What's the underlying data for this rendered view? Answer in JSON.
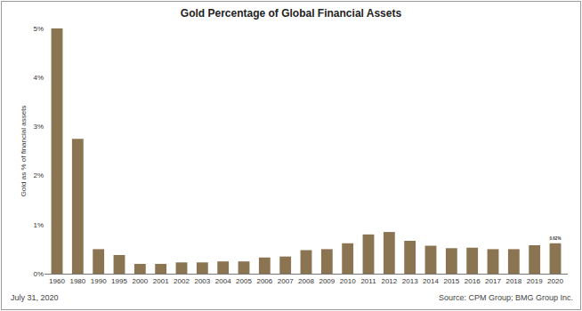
{
  "chart_data": {
    "type": "bar",
    "title": "Gold Percentage of Global Financial Assets",
    "y_label": "Gold as % of financial assets",
    "categories": [
      "1960",
      "1980",
      "1990",
      "1995",
      "2000",
      "2001",
      "2002",
      "2003",
      "2004",
      "2005",
      "2006",
      "2007",
      "2008",
      "2009",
      "2010",
      "2011",
      "2012",
      "2013",
      "2014",
      "2015",
      "2016",
      "2017",
      "2018",
      "2019",
      "2020"
    ],
    "values": [
      5.0,
      2.75,
      0.5,
      0.38,
      0.2,
      0.2,
      0.23,
      0.23,
      0.25,
      0.25,
      0.33,
      0.35,
      0.48,
      0.5,
      0.62,
      0.8,
      0.85,
      0.67,
      0.57,
      0.52,
      0.53,
      0.5,
      0.5,
      0.58,
      0.62
    ],
    "data_labels": true,
    "value_labels": [
      null,
      null,
      null,
      null,
      null,
      null,
      null,
      null,
      null,
      null,
      null,
      null,
      null,
      null,
      null,
      null,
      null,
      null,
      null,
      null,
      null,
      null,
      null,
      null,
      "0.62%"
    ],
    "color": "#8b7451",
    "ylim": [
      0,
      5
    ],
    "yticks": [
      {
        "value": 0,
        "label": "0%"
      },
      {
        "value": 1,
        "label": "1%"
      },
      {
        "value": 2,
        "label": "2%"
      },
      {
        "value": 3,
        "label": "3%"
      },
      {
        "value": 4,
        "label": "4%"
      },
      {
        "value": 5,
        "label": "5%"
      }
    ],
    "grid": false,
    "annotations": [
      {
        "text": "July 31, 2020"
      },
      {
        "text": "Source: CPM Group; BMG Group Inc."
      }
    ]
  }
}
